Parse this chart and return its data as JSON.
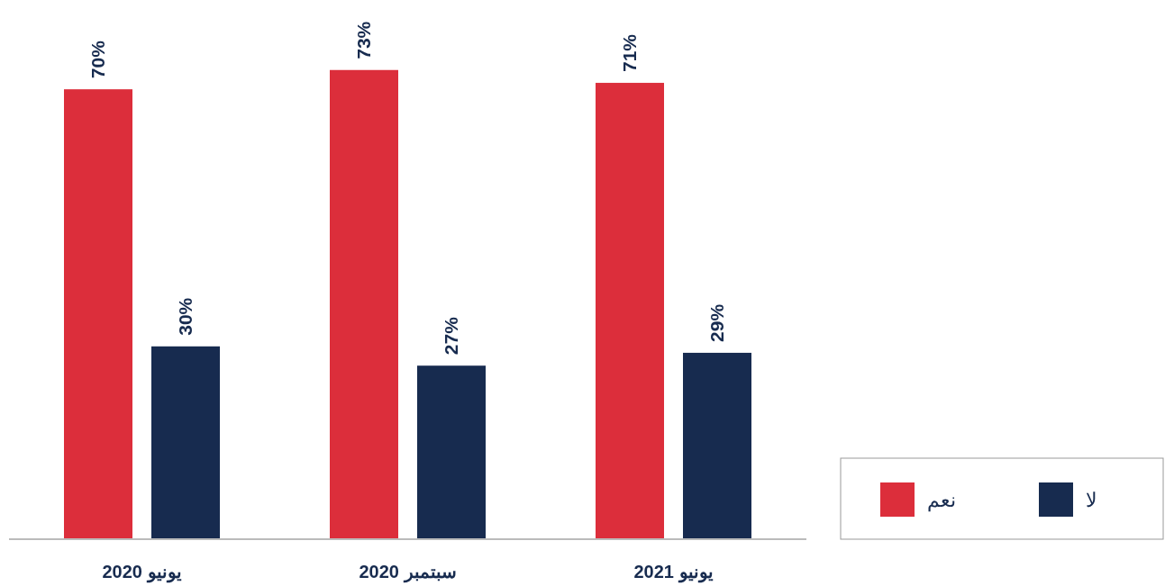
{
  "chart_data": {
    "type": "bar",
    "categories": [
      "يونيو 2020",
      "سبتمبر 2020",
      "يونيو 2021"
    ],
    "series": [
      {
        "name": "نعم",
        "color": "#dc2e3b",
        "values": [
          70,
          73,
          71
        ],
        "value_labels": [
          "70%",
          "73%",
          "71%"
        ]
      },
      {
        "name": "لا",
        "color": "#172b4f",
        "values": [
          30,
          27,
          29
        ],
        "value_labels": [
          "30%",
          "27%",
          "29%"
        ]
      }
    ],
    "legend": "bottom right"
  }
}
